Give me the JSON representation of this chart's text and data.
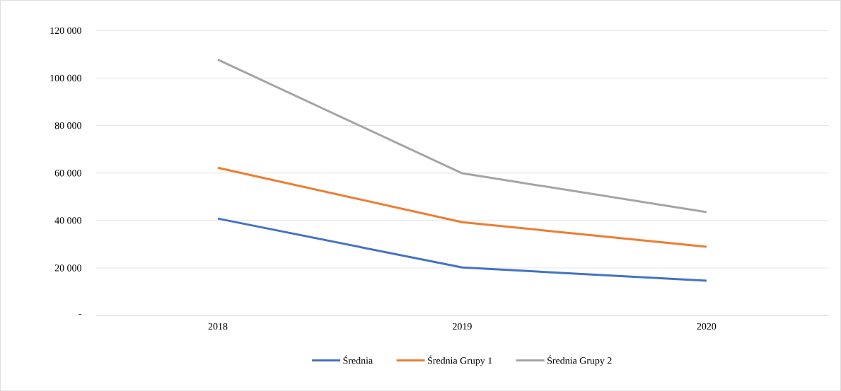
{
  "chart_data": {
    "type": "line",
    "categories": [
      "2018",
      "2019",
      "2020"
    ],
    "series": [
      {
        "name": "Średnia",
        "color": "#4472c4",
        "values": [
          40800,
          20200,
          14600
        ]
      },
      {
        "name": "Średnia Grupy 1",
        "color": "#ed7d31",
        "values": [
          62200,
          39300,
          28900
        ]
      },
      {
        "name": "Średnia Grupy 2",
        "color": "#a5a5a5",
        "values": [
          107800,
          59900,
          43500
        ]
      }
    ],
    "ylim": [
      0,
      120000
    ],
    "yticks": [
      {
        "value": 0,
        "label": "-"
      },
      {
        "value": 20000,
        "label": "20 000"
      },
      {
        "value": 40000,
        "label": "40 000"
      },
      {
        "value": 60000,
        "label": "60 000"
      },
      {
        "value": 80000,
        "label": "80 000"
      },
      {
        "value": 100000,
        "label": "100 000"
      },
      {
        "value": 120000,
        "label": "120 000"
      }
    ],
    "grid": "y",
    "legend": "bottom",
    "marker": "none",
    "line_style": "solid"
  }
}
